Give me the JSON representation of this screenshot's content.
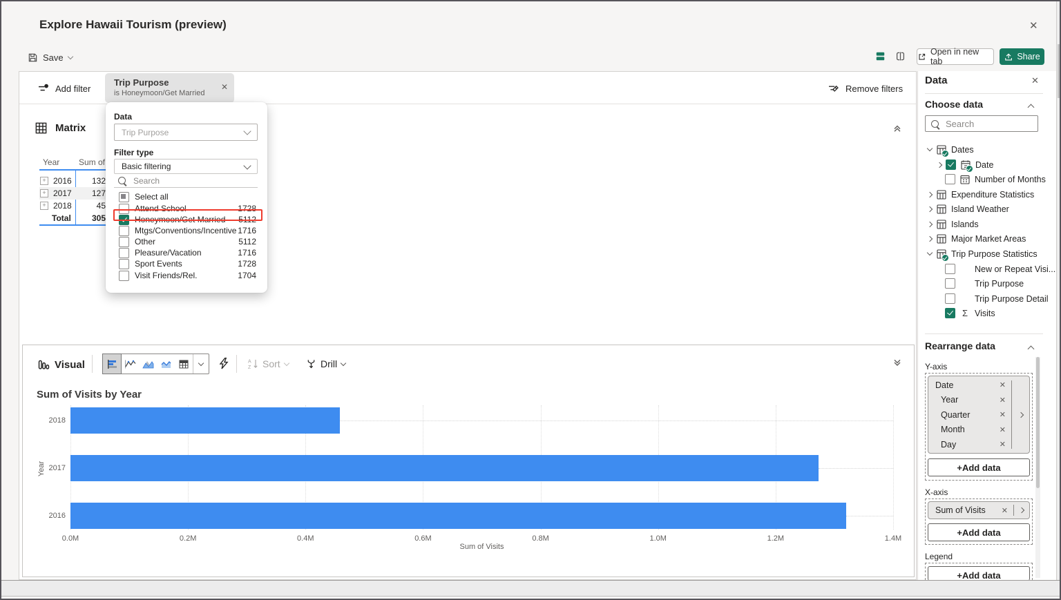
{
  "window": {
    "title": "Explore Hawaii Tourism (preview)"
  },
  "glyphs": {
    "close": "✕",
    "dismiss": "✕",
    "sigma": "Σ"
  },
  "colors": {
    "accent_green": "#187a61",
    "bar_blue": "#3e8cf0",
    "annotation_red": "#ee3b2d"
  },
  "toolbar": {
    "save_label": "Save",
    "open_in_new_tab_label": "Open in new tab",
    "share_label": "Share"
  },
  "filter_bar": {
    "add_filter_label": "Add filter",
    "remove_filters_label": "Remove filters",
    "chip": {
      "title": "Trip Purpose",
      "subtitle": "is Honeymoon/Get Married"
    }
  },
  "filter_popup": {
    "data_label": "Data",
    "data_value": "Trip Purpose",
    "filter_type_label": "Filter type",
    "filter_type_value": "Basic filtering",
    "search_placeholder": "Search",
    "select_all_label": "Select all",
    "items": [
      {
        "label": "Attend School",
        "count": "1728",
        "checked": false,
        "annotated": false
      },
      {
        "label": "Honeymoon/Get Married",
        "count": "5112",
        "checked": true,
        "annotated": true
      },
      {
        "label": "Mtgs/Conventions/Incentive",
        "count": "1716",
        "checked": false,
        "annotated": false
      },
      {
        "label": "Other",
        "count": "5112",
        "checked": false,
        "annotated": false
      },
      {
        "label": "Pleasure/Vacation",
        "count": "1716",
        "checked": false,
        "annotated": false
      },
      {
        "label": "Sport Events",
        "count": "1728",
        "checked": false,
        "annotated": false
      },
      {
        "label": "Visit Friends/Rel.",
        "count": "1704",
        "checked": false,
        "annotated": false
      }
    ]
  },
  "matrix": {
    "title": "Matrix",
    "col_year": "Year",
    "col_value": "Sum of",
    "rows": [
      {
        "year": "2016",
        "value": "132",
        "expandable": true,
        "highlighted": false
      },
      {
        "year": "2017",
        "value": "127",
        "expandable": true,
        "highlighted": true
      },
      {
        "year": "2018",
        "value": "45",
        "expandable": true,
        "highlighted": false
      },
      {
        "year": "Total",
        "value": "305",
        "expandable": false,
        "highlighted": false
      }
    ]
  },
  "visual_toolbar": {
    "visual_label": "Visual",
    "sort_label": "Sort",
    "drill_label": "Drill",
    "chart_types": [
      "bar-chart",
      "line-chart",
      "area-chart",
      "stacked-area-chart",
      "table"
    ],
    "selected_chart_type": "bar-chart"
  },
  "chart_data": {
    "type": "bar",
    "orientation": "horizontal",
    "title": "Sum of Visits by Year",
    "categories": [
      "2018",
      "2017",
      "2016"
    ],
    "values": [
      459000,
      1273000,
      1320000
    ],
    "xlabel": "Sum of Visits",
    "ylabel": "Year",
    "xlim": [
      0,
      1400000
    ],
    "x_ticks": [
      "0.0M",
      "0.2M",
      "0.4M",
      "0.6M",
      "0.8M",
      "1.0M",
      "1.2M",
      "1.4M"
    ],
    "bar_color": "#3e8cf0",
    "grid": "dotted vertical gridlines",
    "legend": "none"
  },
  "data_panel": {
    "title": "Data",
    "choose_data_label": "Choose data",
    "search_placeholder": "Search",
    "tree": [
      {
        "label": "Dates",
        "expanded": true,
        "badge": true,
        "icon": "table"
      },
      {
        "label": "Date",
        "expanded": false,
        "checked": true,
        "badge": true,
        "icon": "date-table",
        "level": 1
      },
      {
        "label": "Number of Months",
        "checked": false,
        "icon": "calendar",
        "level": 1
      },
      {
        "label": "Expenditure Statistics",
        "expanded": false,
        "icon": "table"
      },
      {
        "label": "Island Weather",
        "expanded": false,
        "icon": "table"
      },
      {
        "label": "Islands",
        "expanded": false,
        "icon": "table"
      },
      {
        "label": "Major Market Areas",
        "expanded": false,
        "icon": "table"
      },
      {
        "label": "Trip Purpose Statistics",
        "expanded": true,
        "badge": true,
        "icon": "table"
      },
      {
        "label": "New or Repeat Visi...",
        "checked": false,
        "level": 1
      },
      {
        "label": "Trip Purpose",
        "checked": false,
        "level": 1
      },
      {
        "label": "Trip Purpose Detail",
        "checked": false,
        "level": 1
      },
      {
        "label": "Visits",
        "checked": true,
        "icon": "sigma",
        "level": 1
      }
    ],
    "rearrange": {
      "title": "Rearrange data",
      "y_axis_label": "Y-axis",
      "y_axis_fields": [
        "Date",
        "Year",
        "Quarter",
        "Month",
        "Day"
      ],
      "x_axis_label": "X-axis",
      "x_axis_fields": [
        "Sum of Visits"
      ],
      "legend_label": "Legend",
      "add_data_label": "+Add data"
    }
  }
}
